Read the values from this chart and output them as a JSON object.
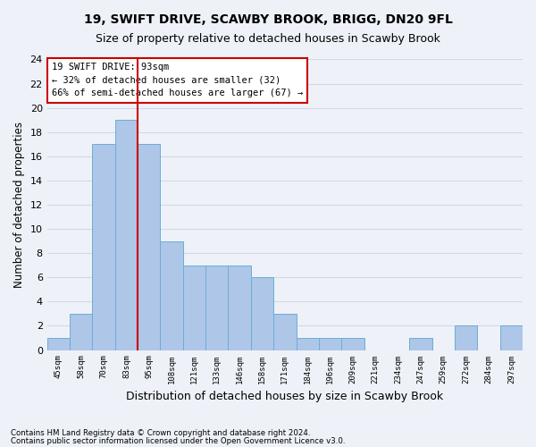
{
  "title1": "19, SWIFT DRIVE, SCAWBY BROOK, BRIGG, DN20 9FL",
  "title2": "Size of property relative to detached houses in Scawby Brook",
  "xlabel": "Distribution of detached houses by size in Scawby Brook",
  "ylabel": "Number of detached properties",
  "footer1": "Contains HM Land Registry data © Crown copyright and database right 2024.",
  "footer2": "Contains public sector information licensed under the Open Government Licence v3.0.",
  "annotation_title": "19 SWIFT DRIVE: 93sqm",
  "annotation_line2": "← 32% of detached houses are smaller (32)",
  "annotation_line3": "66% of semi-detached houses are larger (67) →",
  "bin_labels": [
    "45sqm",
    "58sqm",
    "70sqm",
    "83sqm",
    "95sqm",
    "108sqm",
    "121sqm",
    "133sqm",
    "146sqm",
    "158sqm",
    "171sqm",
    "184sqm",
    "196sqm",
    "209sqm",
    "221sqm",
    "234sqm",
    "247sqm",
    "259sqm",
    "272sqm",
    "284sqm",
    "297sqm"
  ],
  "bar_values": [
    1,
    3,
    17,
    19,
    17,
    9,
    7,
    7,
    7,
    6,
    3,
    1,
    1,
    1,
    0,
    0,
    1,
    0,
    2,
    0,
    2
  ],
  "bar_color": "#aec6e8",
  "bar_edge_color": "#6aaed6",
  "grid_color": "#d0d8e8",
  "background_color": "#eef2f8",
  "annotation_box_color": "#ffffff",
  "annotation_box_edge": "#cc0000",
  "vline_color": "#cc0000",
  "ylim": [
    0,
    24
  ],
  "yticks": [
    0,
    2,
    4,
    6,
    8,
    10,
    12,
    14,
    16,
    18,
    20,
    22,
    24
  ]
}
